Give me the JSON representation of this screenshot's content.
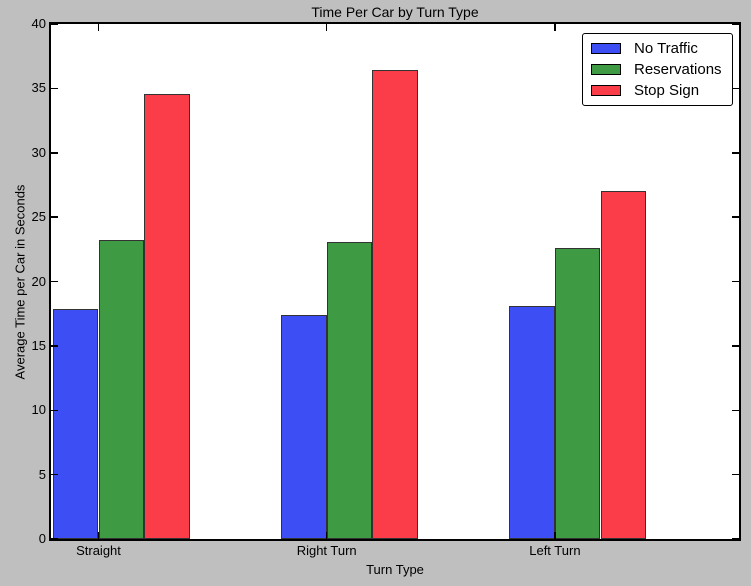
{
  "colors": {
    "figure_background": "#bfbfbf",
    "plot_background": "#ffffff",
    "axis_color": "#000000",
    "bar_edge_color": "#333333"
  },
  "chart_data": {
    "type": "bar",
    "title": "Time Per Car by Turn Type",
    "xlabel": "Turn Type",
    "ylabel": "Average Time per Car in Seconds",
    "categories": [
      "Straight",
      "Right Turn",
      "Left Turn"
    ],
    "series": [
      {
        "name": "No Traffic",
        "color": "#3d4ff4",
        "values": [
          17.9,
          17.4,
          18.1
        ]
      },
      {
        "name": "Reservations",
        "color": "#3f9a44",
        "values": [
          23.2,
          23.1,
          22.6
        ]
      },
      {
        "name": "Stop Sign",
        "color": "#fb3d4a",
        "values": [
          34.6,
          36.4,
          27.0
        ]
      }
    ],
    "ylim": [
      0,
      40
    ],
    "yticks": [
      0,
      5,
      10,
      15,
      20,
      25,
      30,
      35,
      40
    ],
    "grid": false,
    "legend_position": "upper right"
  }
}
